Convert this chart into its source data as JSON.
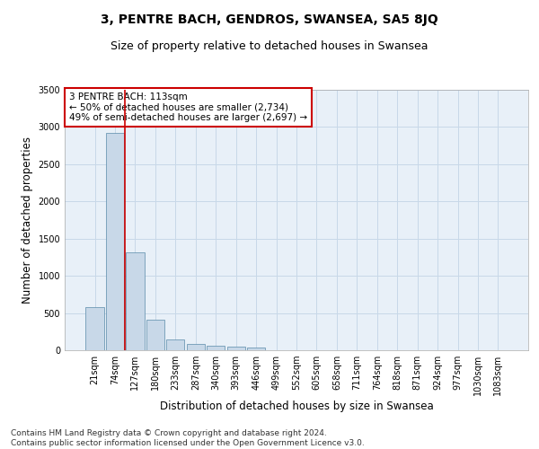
{
  "title": "3, PENTRE BACH, GENDROS, SWANSEA, SA5 8JQ",
  "subtitle": "Size of property relative to detached houses in Swansea",
  "xlabel": "Distribution of detached houses by size in Swansea",
  "ylabel": "Number of detached properties",
  "bar_values": [
    575,
    2920,
    1320,
    410,
    150,
    80,
    55,
    45,
    40,
    0,
    0,
    0,
    0,
    0,
    0,
    0,
    0,
    0,
    0,
    0,
    0
  ],
  "categories": [
    "21sqm",
    "74sqm",
    "127sqm",
    "180sqm",
    "233sqm",
    "287sqm",
    "340sqm",
    "393sqm",
    "446sqm",
    "499sqm",
    "552sqm",
    "605sqm",
    "658sqm",
    "711sqm",
    "764sqm",
    "818sqm",
    "871sqm",
    "924sqm",
    "977sqm",
    "1030sqm",
    "1083sqm"
  ],
  "bar_color": "#c8d8e8",
  "bar_edge_color": "#5a8aaa",
  "grid_color": "#c8d8e8",
  "background_color": "#e8f0f8",
  "vline_x": 1.5,
  "vline_color": "#cc0000",
  "annotation_text": "3 PENTRE BACH: 113sqm\n← 50% of detached houses are smaller (2,734)\n49% of semi-detached houses are larger (2,697) →",
  "annotation_box_color": "#cc0000",
  "ylim": [
    0,
    3500
  ],
  "yticks": [
    0,
    500,
    1000,
    1500,
    2000,
    2500,
    3000,
    3500
  ],
  "footer": "Contains HM Land Registry data © Crown copyright and database right 2024.\nContains public sector information licensed under the Open Government Licence v3.0.",
  "title_fontsize": 10,
  "subtitle_fontsize": 9,
  "xlabel_fontsize": 8.5,
  "ylabel_fontsize": 8.5,
  "annotation_fontsize": 7.5,
  "footer_fontsize": 6.5,
  "tick_fontsize": 7
}
